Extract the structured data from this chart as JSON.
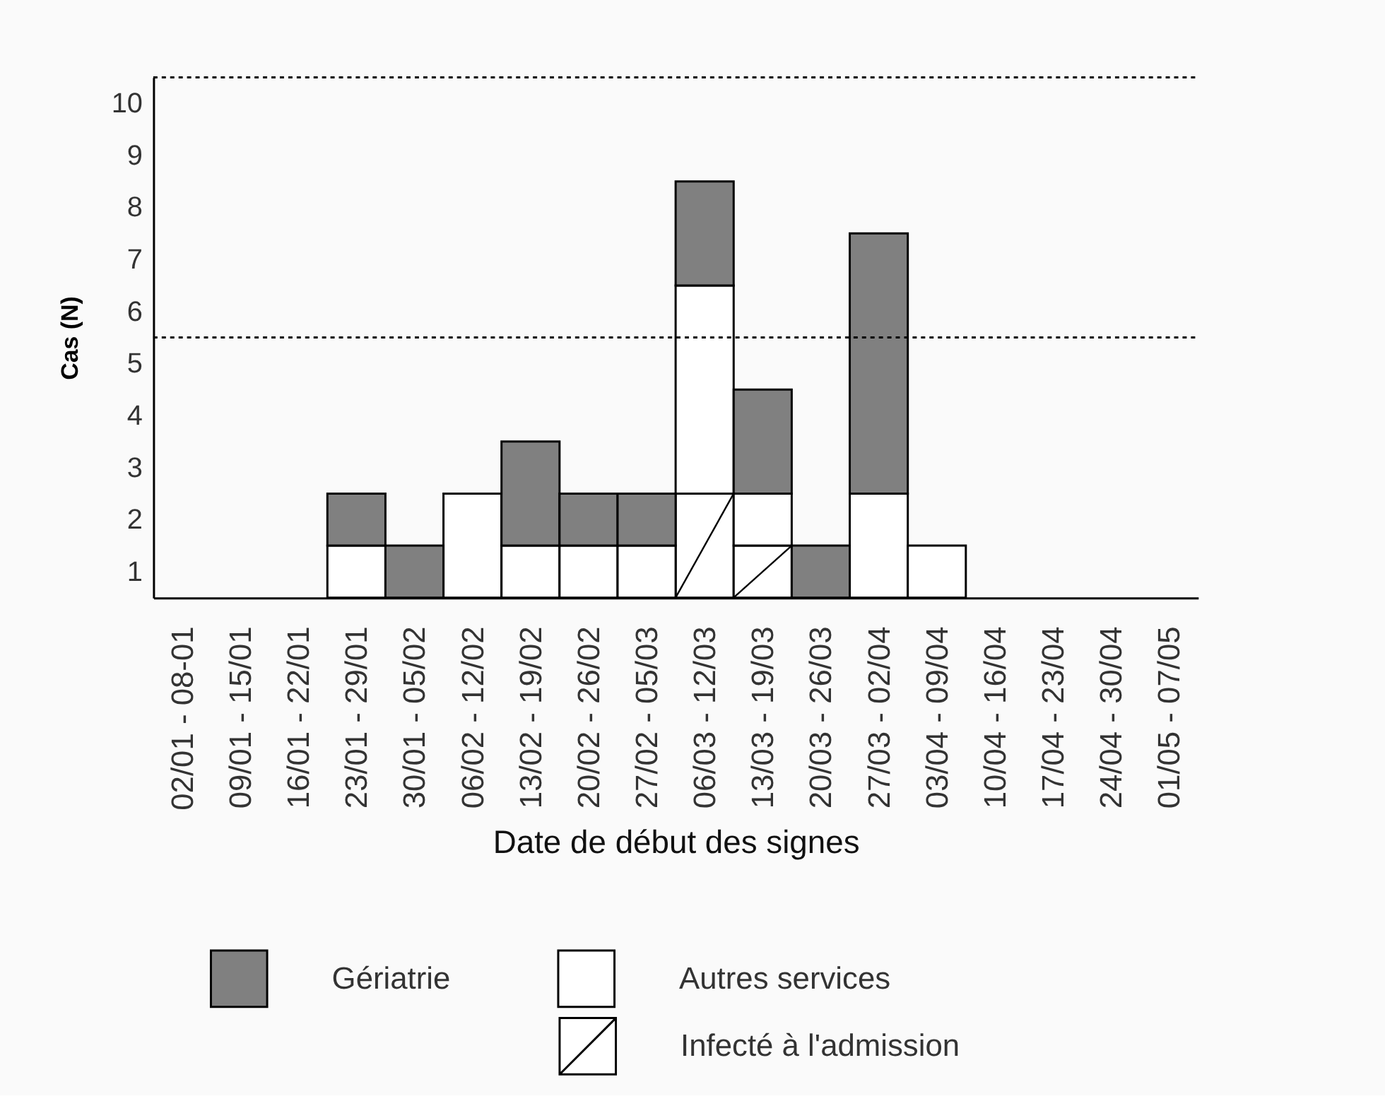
{
  "chart_data": {
    "type": "bar",
    "stacked": true,
    "categories": [
      "02/01 - 08-01",
      "09/01 - 15/01",
      "16/01 - 22/01",
      "23/01 - 29/01",
      "30/01 - 05/02",
      "06/02 - 12/02",
      "13/02 - 19/02",
      "20/02 - 26/02",
      "27/02 - 05/03",
      "06/03 - 12/03",
      "13/03 - 19/03",
      "20/03 - 26/03",
      "27/03 - 02/04",
      "03/04 - 09/04",
      "10/04 - 16/04",
      "17/04 - 23/04",
      "24/04 - 30/04",
      "01/05 - 07/05"
    ],
    "series": [
      {
        "name": "Infecté à l'admission",
        "color": "#ffffff",
        "values": [
          0,
          0,
          0,
          0,
          0,
          0,
          0,
          0,
          0,
          2,
          1,
          0,
          0,
          0,
          0,
          0,
          0,
          0
        ]
      },
      {
        "name": "Autres services",
        "color": "#ffffff",
        "values": [
          0,
          0,
          0,
          1,
          0,
          2,
          1,
          1,
          1,
          4,
          1,
          0,
          2,
          1,
          0,
          0,
          0,
          0
        ]
      },
      {
        "name": "Gériatrie",
        "color": "#808080",
        "values": [
          0,
          0,
          0,
          1,
          1,
          0,
          2,
          1,
          1,
          2,
          2,
          1,
          5,
          0,
          0,
          0,
          0,
          0
        ]
      }
    ],
    "xlabel": "Date de début des signes",
    "ylabel": "Cas (N)",
    "ylim": [
      0,
      10
    ],
    "yticks": [
      {
        "value": 0.5,
        "label": "1"
      },
      {
        "value": 1.5,
        "label": "2"
      },
      {
        "value": 2.5,
        "label": "3"
      },
      {
        "value": 3.5,
        "label": "4"
      },
      {
        "value": 4.5,
        "label": "5"
      },
      {
        "value": 5.5,
        "label": "6"
      },
      {
        "value": 6.5,
        "label": "7"
      },
      {
        "value": 7.5,
        "label": "8"
      },
      {
        "value": 8.5,
        "label": "9"
      },
      {
        "value": 9.5,
        "label": "10"
      }
    ],
    "ref_lines": [
      {
        "axis": "y",
        "value": 5,
        "line_style": "dotted",
        "color": "#000000"
      },
      {
        "axis": "y",
        "value": 10,
        "line_style": "dotted",
        "color": "#000000"
      }
    ],
    "grid": false,
    "legend": "bottom"
  }
}
